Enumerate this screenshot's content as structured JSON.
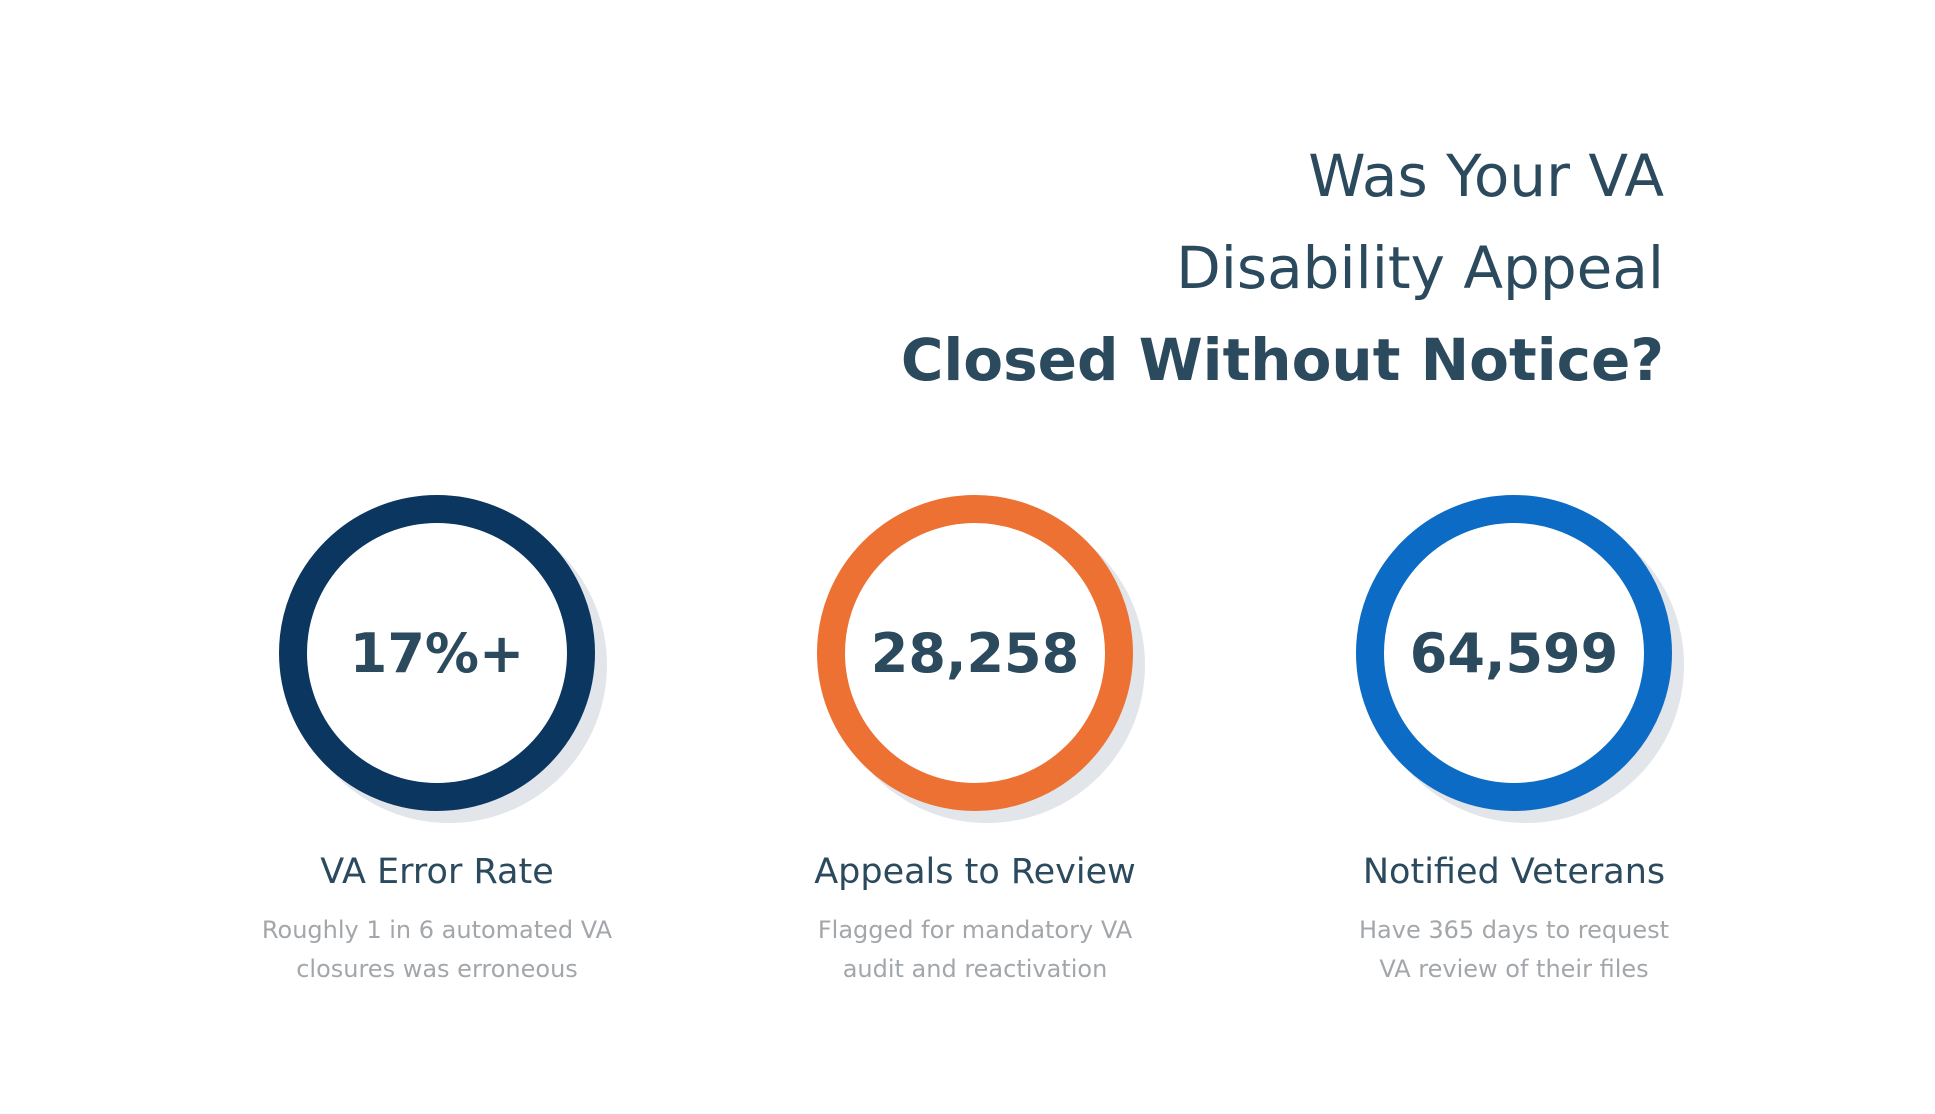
{
  "headline": {
    "line1": "Was Your VA",
    "line2": "Disability Appeal",
    "line3": "Closed Without Notice?"
  },
  "stats": [
    {
      "value": "17%+",
      "title": "VA Error Rate",
      "desc_line1": "Roughly 1 in 6 automated VA",
      "desc_line2": "closures was erroneous",
      "ring_color": "#0a3660"
    },
    {
      "value": "28,258",
      "title": "Appeals to Review",
      "desc_line1": "Flagged for mandatory VA",
      "desc_line2": "audit and reactivation",
      "ring_color": "#ec7133"
    },
    {
      "value": "64,599",
      "title": "Notified Veterans",
      "desc_line1": "Have 365 days to request",
      "desc_line2": "VA review of their files",
      "ring_color": "#0c6bc4"
    }
  ],
  "colors": {
    "text_primary": "#2c4a5e",
    "text_muted": "#a3a7ab",
    "ring_shadow": "#e2e5e9"
  }
}
